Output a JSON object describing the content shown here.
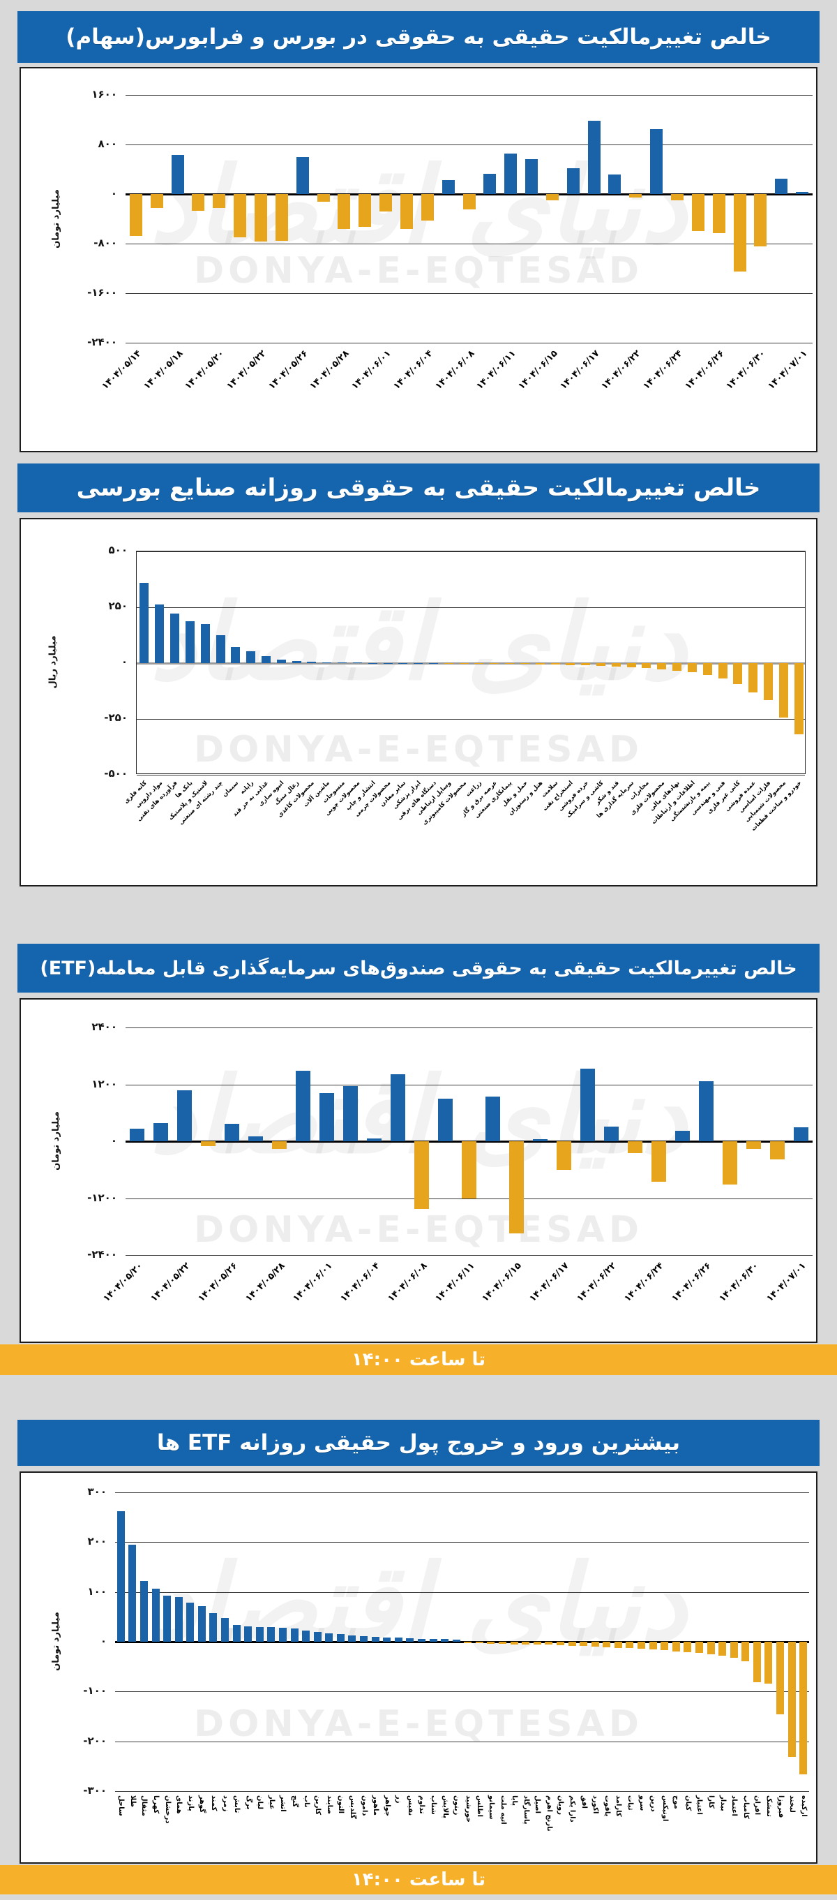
{
  "page": {
    "watermark_latin": "DONYA-E-EQTESAD",
    "watermark_fa": "دنیای اقتصاد",
    "colors": {
      "positive_bar": "#1a63a8",
      "negative_bar": "#e7a51d",
      "header_bg": "#1565ae",
      "strip_bg": "#f6b02a",
      "page_bg": "#d9d9d9"
    }
  },
  "chart_data": [
    {
      "type": "bar",
      "title": "خالص تغییرمالکیت حقیقی به حقوقی در بورس و فرابورس(سهام)",
      "unit": "میلیارد تومان",
      "ylim": [
        1600,
        -2400
      ],
      "grid": true,
      "legend": "none",
      "y_ticks": [
        {
          "label": "۱۶۰۰",
          "value": 1600
        },
        {
          "label": "۸۰۰",
          "value": 800
        },
        {
          "label": "۰",
          "value": 0
        },
        {
          "label": "-۸۰۰",
          "value": -800
        },
        {
          "label": "-۱۶۰۰",
          "value": -1600
        },
        {
          "label": "-۲۴۰۰",
          "value": -2400
        }
      ],
      "categories": [
        "۱۴۰۴/۰۵/۱۴",
        "",
        "۱۴۰۴/۰۵/۱۸",
        "",
        "۱۴۰۴/۰۵/۲۰",
        "",
        "۱۴۰۴/۰۵/۲۲",
        "",
        "۱۴۰۴/۰۵/۲۶",
        "",
        "۱۴۰۴/۰۵/۲۸",
        "",
        "۱۴۰۴/۰۶/۰۱",
        "",
        "۱۴۰۴/۰۶/۰۴",
        "",
        "۱۴۰۴/۰۶/۰۸",
        "",
        "۱۴۰۴/۰۶/۱۱",
        "",
        "۱۴۰۴/۰۶/۱۵",
        "",
        "۱۴۰۴/۰۶/۱۷",
        "",
        "۱۴۰۴/۰۶/۲۲",
        "",
        "۱۴۰۴/۰۶/۲۴",
        "",
        "۱۴۰۴/۰۶/۲۶",
        "",
        "۱۴۰۴/۰۶/۳۰",
        "",
        "۱۴۰۴/۰۷/۰۱"
      ],
      "values": [
        -680,
        -220,
        630,
        -270,
        -220,
        -700,
        -770,
        -760,
        600,
        -120,
        -560,
        -530,
        -280,
        -560,
        -430,
        220,
        -250,
        330,
        650,
        560,
        -100,
        420,
        1180,
        310,
        -60,
        1050,
        -100,
        -600,
        -630,
        -1250,
        -850,
        250,
        30
      ]
    },
    {
      "type": "bar",
      "title": "خالص تغییرمالکیت حقیقی به حقوقی روزانه صنایع بورسی",
      "unit": "میلیارد ریال",
      "ylim": [
        500,
        -500
      ],
      "grid": true,
      "legend": "none",
      "y_ticks": [
        {
          "label": "۵۰۰",
          "value": 500
        },
        {
          "label": "۲۵۰",
          "value": 250
        },
        {
          "label": "۰",
          "value": 0
        },
        {
          "label": "-۲۵۰",
          "value": -250
        },
        {
          "label": "-۵۰۰",
          "value": -500
        }
      ],
      "categories": [
        "کانه فلزی",
        "مواد دارویی",
        "فرآورده های نفتی",
        "بانک ها",
        "لاستیک و پلاستیک",
        "چند رشته ای صنعتی",
        "سیمان",
        "رایانه",
        "غذایی به جز قند",
        "انبوه سازی",
        "زغال سنگ",
        "محصولات کاغذی",
        "ماشین آلات",
        "منسوجات",
        "محصولات چوبی",
        "انتشار و چاپ",
        "محصولات چرمی",
        "سایر معادن",
        "ابزار پزشکی",
        "دستگاه های برقی",
        "وسایل ارتباطی",
        "محصولات کامپیوتری",
        "زراعت",
        "عرضه برق و گاز",
        "پیمانکاری صنعتی",
        "حمل و نقل",
        "هتل و رستوران",
        "سلامت",
        "استخراج نفت",
        "خرده فروشی",
        "کاشی و سرامیک",
        "قند و شکر",
        "سرمایه گذاری ها",
        "مخابرات",
        "محصولات فلزی",
        "نهادهای مالی",
        "اطلاعات و ارتباطات",
        "بیمه و بازنشستگی",
        "فنی و مهندسی",
        "کانی غیر فلزی",
        "عمده فروشی",
        "فلزات اساسی",
        "محصولات شیمیایی",
        "خودرو و ساخت قطعات"
      ],
      "values": [
        360,
        262,
        221,
        186,
        176,
        126,
        72,
        54,
        31,
        17,
        9,
        5,
        3,
        2,
        2,
        1,
        1,
        1,
        0,
        0,
        -1,
        -1,
        -2,
        -2,
        -3,
        -4,
        -5,
        -6,
        -8,
        -10,
        -12,
        -15,
        -18,
        -22,
        -27,
        -33,
        -41,
        -52,
        -68,
        -95,
        -130,
        -165,
        -245,
        -320
      ]
    },
    {
      "type": "bar",
      "title": "خالص تغییرمالکیت حقیقی به حقوقی صندوق‌های سرمایه‌گذاری قابل معامله(ETF)",
      "unit": "میلیارد تومان",
      "footer": "تا ساعت ۱۴:۰۰",
      "ylim": [
        2400,
        -2400
      ],
      "grid": true,
      "legend": "none",
      "y_ticks": [
        {
          "label": "۲۴۰۰",
          "value": 2400
        },
        {
          "label": "۱۲۰۰",
          "value": 1200
        },
        {
          "label": "۰",
          "value": 0
        },
        {
          "label": "-۱۲۰۰",
          "value": -1200
        },
        {
          "label": "-۲۴۰۰",
          "value": -2400
        }
      ],
      "categories": [
        "۱۴۰۴/۰۵/۲۰",
        "",
        "۱۴۰۴/۰۵/۲۲",
        "",
        "۱۴۰۴/۰۵/۲۶",
        "",
        "۱۴۰۴/۰۵/۲۸",
        "",
        "۱۴۰۴/۰۶/۰۱",
        "",
        "۱۴۰۴/۰۶/۰۴",
        "",
        "۱۴۰۴/۰۶/۰۸",
        "",
        "۱۴۰۴/۰۶/۱۱",
        "",
        "۱۴۰۴/۰۶/۱۵",
        "",
        "۱۴۰۴/۰۶/۱۷",
        "",
        "۱۴۰۴/۰۶/۲۲",
        "",
        "۱۴۰۴/۰۶/۲۴",
        "",
        "۱۴۰۴/۰۶/۲۶",
        "",
        "۱۴۰۴/۰۶/۳۰",
        "",
        "۱۴۰۴/۰۷/۰۱"
      ],
      "values": [
        270,
        380,
        1070,
        -100,
        375,
        110,
        -160,
        1480,
        1010,
        1170,
        60,
        1420,
        -1425,
        900,
        -1210,
        945,
        -1950,
        50,
        -610,
        1525,
        305,
        -250,
        -860,
        220,
        1270,
        -910,
        -160,
        -385,
        295
      ]
    },
    {
      "type": "bar",
      "title": "بیشترین ورود و خروج پول حقیقی روزانه ETF ها",
      "unit": "میلیارد تومان",
      "footer": "تا ساعت ۱۴:۰۰",
      "ylim": [
        300,
        -300
      ],
      "grid": true,
      "legend": "none",
      "y_ticks": [
        {
          "label": "۳۰۰",
          "value": 300
        },
        {
          "label": "۲۰۰",
          "value": 200
        },
        {
          "label": "۱۰۰",
          "value": 100
        },
        {
          "label": "۰",
          "value": 0
        },
        {
          "label": "-۱۰۰",
          "value": -100
        },
        {
          "label": "-۲۰۰",
          "value": -200
        },
        {
          "label": "-۳۰۰",
          "value": -300
        }
      ],
      "categories": [
        "ساحل",
        "طلا",
        "مثقال",
        "کهربا",
        "درخشان",
        "همای",
        "پازند",
        "گوهر",
        "کمند",
        "زمرد",
        "تابش",
        "برگ",
        "لیان",
        "عیار",
        "اتشر",
        "گنج",
        "ناب",
        "کارین",
        "صایند",
        "التون",
        "گلدیس",
        "دامون",
        "ماهور",
        "جواهر",
        "زر",
        "نفیس",
        "تداوم",
        "شتاب",
        "پالایش",
        "زیتون",
        "خورشید",
        "اطلس",
        "سیمانو",
        "اتیه ملت",
        "پایا",
        "پاسارگاد",
        "اصیل",
        "نارنج اهرم",
        "رویان",
        "دارا یکم",
        "افق",
        "اکورد",
        "یاقوت",
        "کارامد",
        "ثبات",
        "سرو",
        "درین",
        "اونیکس",
        "موج",
        "کیان",
        "اعتبار",
        "کارا",
        "بیدار",
        "اعتماد",
        "کامیاب",
        "افران",
        "تمشک",
        "فیروزا",
        "لبخند",
        "ارکیده"
      ],
      "values": [
        262,
        195,
        122,
        107,
        93,
        90,
        78,
        72,
        58,
        48,
        33,
        31,
        30,
        29,
        28,
        27,
        23,
        20,
        17,
        15,
        13,
        11,
        10,
        9,
        8,
        7,
        6,
        5,
        5,
        4,
        -3,
        -3,
        -4,
        -4,
        -5,
        -5,
        -6,
        -6,
        -7,
        -8,
        -9,
        -10,
        -11,
        -12,
        -13,
        -14,
        -15,
        -17,
        -19,
        -21,
        -23,
        -25,
        -28,
        -32,
        -39,
        -81,
        -84,
        -146,
        -232,
        -266
      ]
    }
  ]
}
